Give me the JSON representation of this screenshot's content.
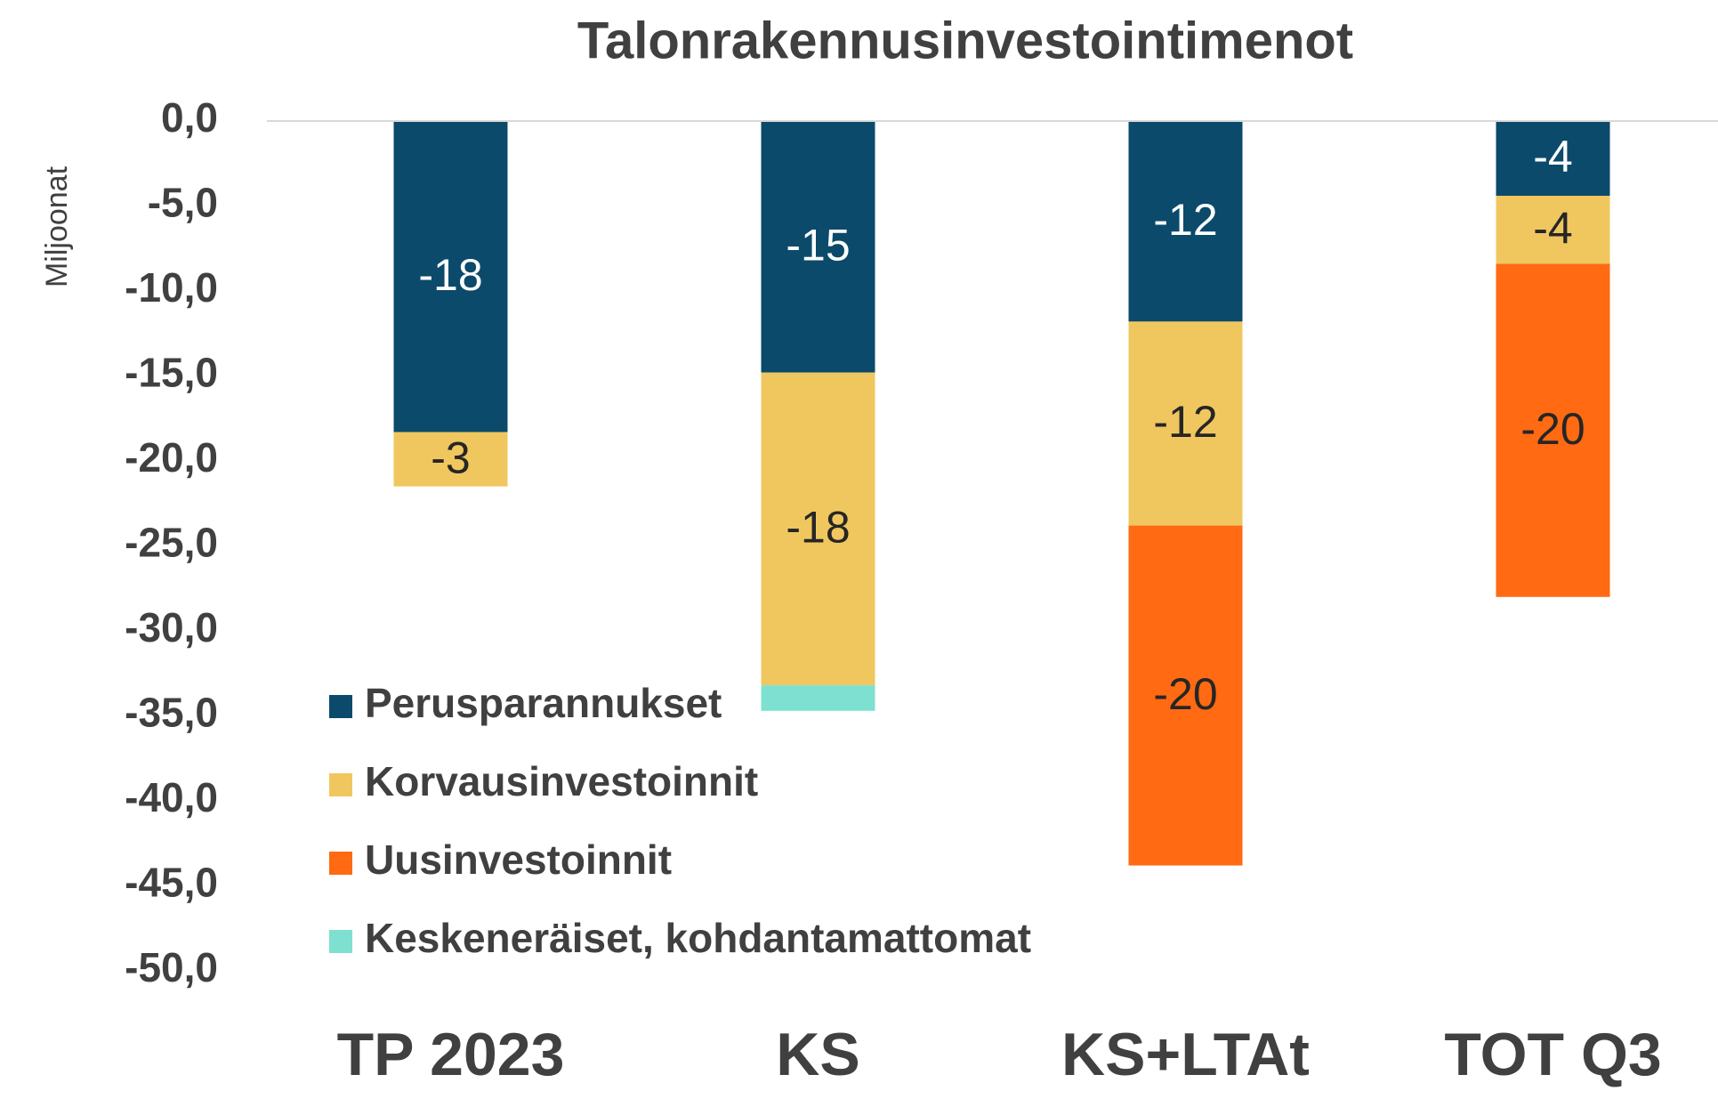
{
  "chart_data": {
    "type": "bar",
    "stacked": true,
    "title": "Talonrakennusinvestointimenot",
    "ylabel": "Miljoonat",
    "categories": [
      "TP 2023",
      "KS",
      "KS+LTAt",
      "TOT Q3"
    ],
    "series": [
      {
        "name": "Perusparannukset",
        "color": "#0b4a6b",
        "values": [
          -18.3,
          -14.8,
          -11.8,
          -4.4
        ],
        "value_labels": [
          "-18",
          "-15",
          "-12",
          "-4"
        ]
      },
      {
        "name": "Korvausinvestoinnit",
        "color": "#f0c75e",
        "values": [
          -3.2,
          -18.4,
          -12.0,
          -4.0
        ],
        "value_labels": [
          "-3",
          "-18",
          "-12",
          "-4"
        ]
      },
      {
        "name": "Uusinvestoinnit",
        "color": "#ff6a13",
        "values": [
          null,
          null,
          -20.0,
          -19.6
        ],
        "value_labels": [
          null,
          null,
          "-20",
          "-20"
        ]
      },
      {
        "name": "Keskeneräiset, kohdantamattomat",
        "color": "#7de0d0",
        "values": [
          null,
          -1.5,
          null,
          null
        ],
        "value_labels": [
          null,
          null,
          null,
          null
        ]
      }
    ],
    "ylim": [
      -50,
      0
    ],
    "yticks": [
      {
        "value": 0,
        "label": "0,0"
      },
      {
        "value": -5,
        "label": "-5,0"
      },
      {
        "value": -10,
        "label": "-10,0"
      },
      {
        "value": -15,
        "label": "-15,0"
      },
      {
        "value": -20,
        "label": "-20,0"
      },
      {
        "value": -25,
        "label": "-25,0"
      },
      {
        "value": -30,
        "label": "-30,0"
      },
      {
        "value": -35,
        "label": "-35,0"
      },
      {
        "value": -40,
        "label": "-40,0"
      },
      {
        "value": -45,
        "label": "-45,0"
      },
      {
        "value": -50,
        "label": "-50,0"
      }
    ],
    "legend": "lower left"
  }
}
